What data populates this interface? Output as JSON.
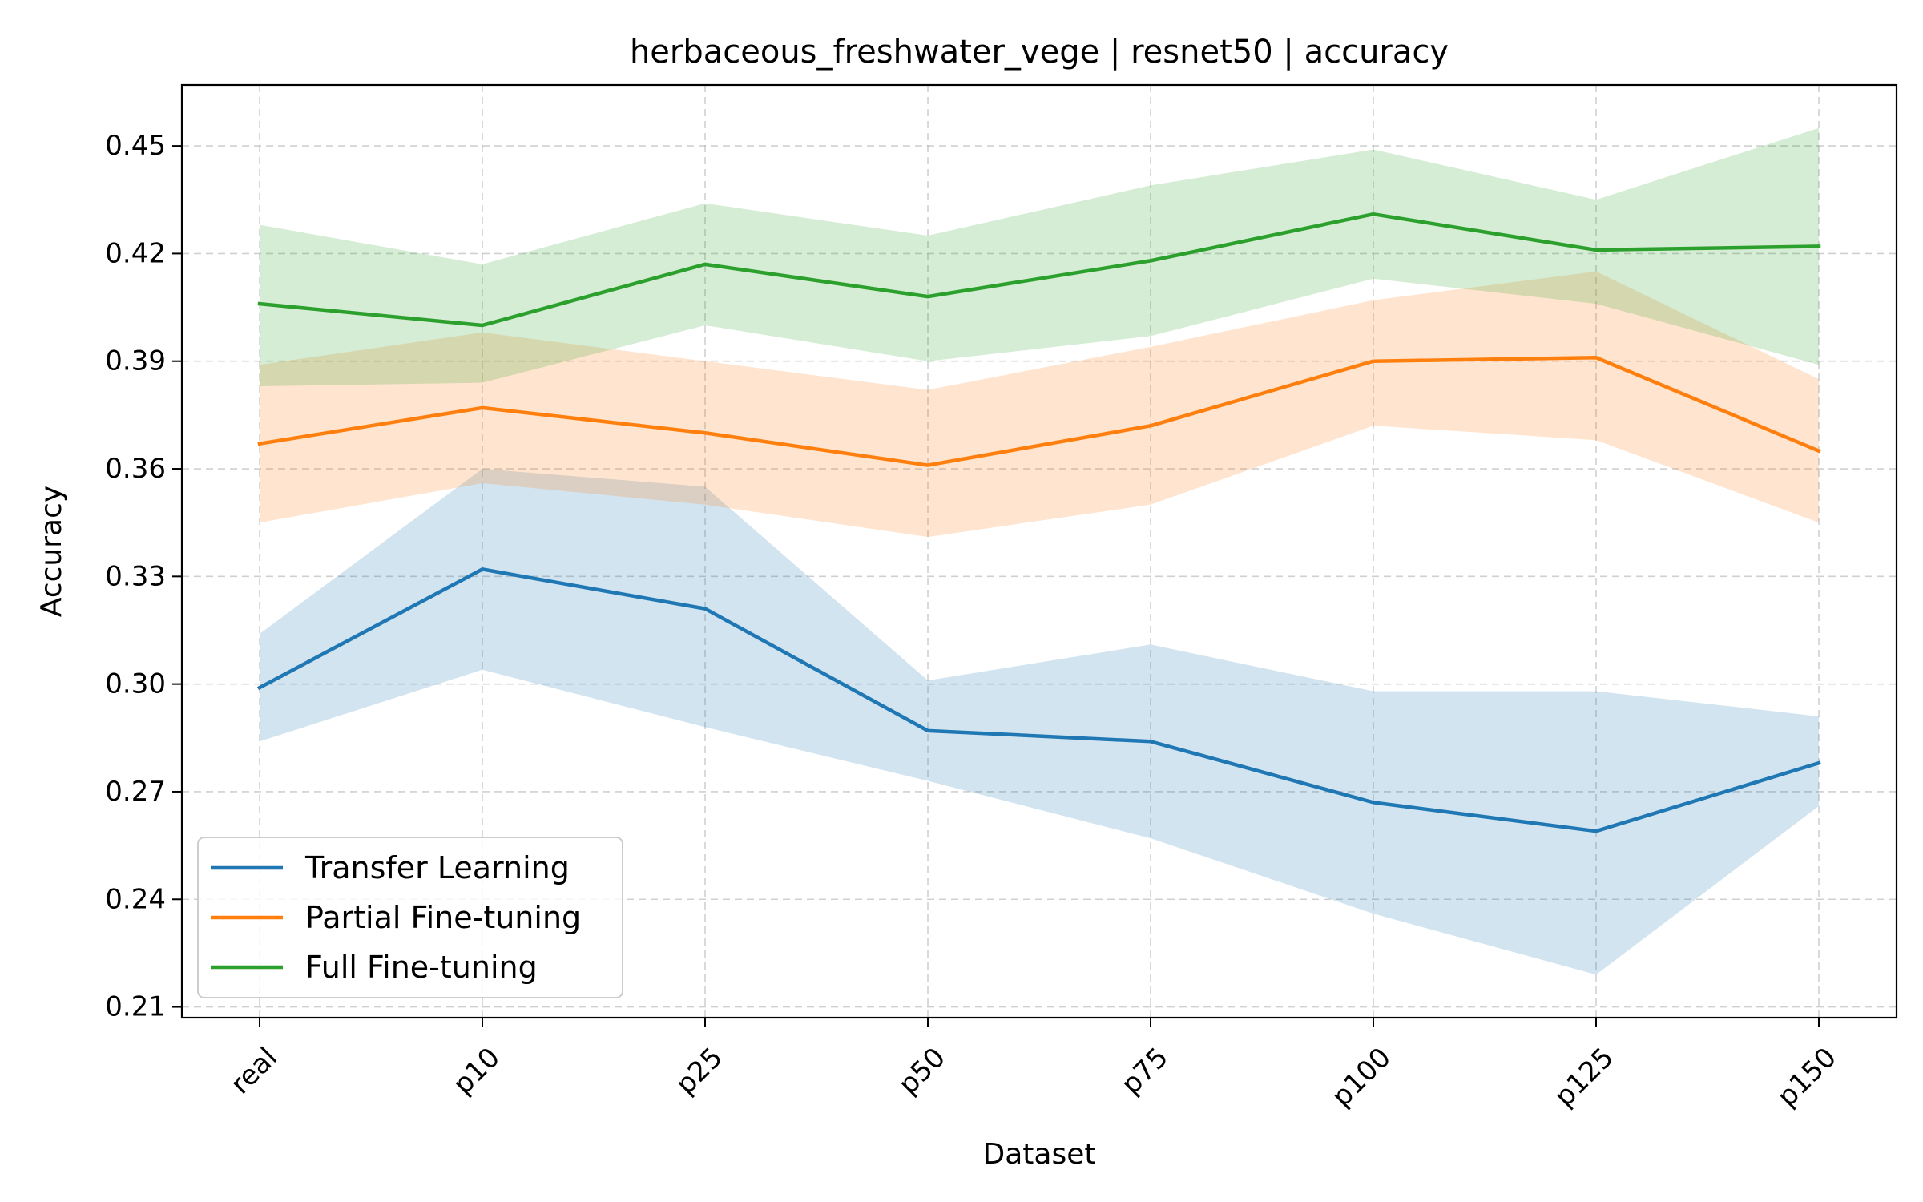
{
  "chart_data": {
    "type": "line",
    "title": "herbaceous_freshwater_vege | resnet50 | accuracy",
    "xlabel": "Dataset",
    "ylabel": "Accuracy",
    "categories": [
      "real",
      "p10",
      "p25",
      "p50",
      "p75",
      "p100",
      "p125",
      "p150"
    ],
    "ylim": [
      0.207,
      0.467
    ],
    "yticks": [
      0.21,
      0.24,
      0.27,
      0.3,
      0.33,
      0.36,
      0.39,
      0.42,
      0.45
    ],
    "ytick_labels": [
      "0.21",
      "0.24",
      "0.27",
      "0.30",
      "0.33",
      "0.36",
      "0.39",
      "0.42",
      "0.45"
    ],
    "grid": true,
    "legend_position": "lower-left",
    "series": [
      {
        "name": "Transfer Learning",
        "color": "#1f77b4",
        "values": [
          0.299,
          0.332,
          0.321,
          0.287,
          0.284,
          0.267,
          0.259,
          0.278
        ],
        "lower": [
          0.284,
          0.304,
          0.288,
          0.273,
          0.257,
          0.236,
          0.219,
          0.266
        ],
        "upper": [
          0.314,
          0.36,
          0.355,
          0.301,
          0.311,
          0.298,
          0.298,
          0.291
        ]
      },
      {
        "name": "Partial Fine-tuning",
        "color": "#ff7f0e",
        "values": [
          0.367,
          0.377,
          0.37,
          0.361,
          0.372,
          0.39,
          0.391,
          0.365
        ],
        "lower": [
          0.345,
          0.356,
          0.35,
          0.341,
          0.35,
          0.372,
          0.368,
          0.345
        ],
        "upper": [
          0.389,
          0.398,
          0.39,
          0.382,
          0.394,
          0.407,
          0.415,
          0.385
        ]
      },
      {
        "name": "Full Fine-tuning",
        "color": "#2ca02c",
        "values": [
          0.406,
          0.4,
          0.417,
          0.408,
          0.418,
          0.431,
          0.421,
          0.422
        ],
        "lower": [
          0.383,
          0.384,
          0.4,
          0.39,
          0.397,
          0.413,
          0.406,
          0.389
        ],
        "upper": [
          0.428,
          0.417,
          0.434,
          0.425,
          0.439,
          0.449,
          0.435,
          0.455
        ]
      }
    ]
  }
}
